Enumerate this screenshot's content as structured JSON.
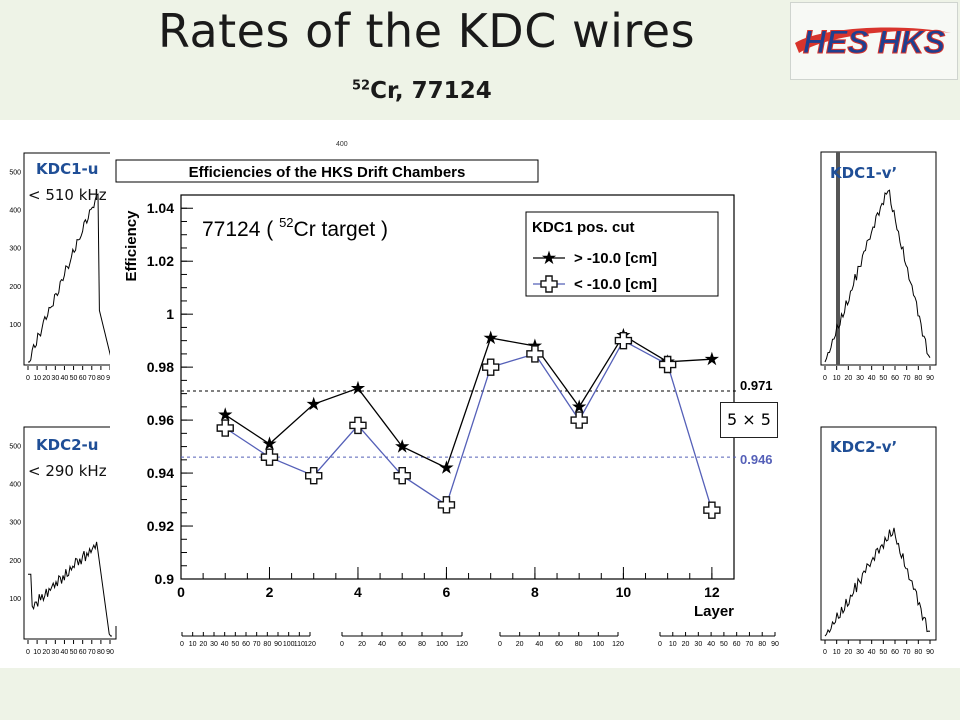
{
  "slide": {
    "title": "Rates of the KDC wires",
    "subtitle_sup": "52",
    "subtitle_main": "Cr, 77124",
    "logo": "HES HKS",
    "panel_labels": {
      "kdc1_u": "KDC1-u",
      "kdc1_u_note": "< 510 kHz",
      "kdc2_u": "KDC2-u",
      "kdc2_u_note": "< 290 kHz",
      "kdc1_v": "KDC1-v’",
      "kdc2_v": "KDC2-v’"
    },
    "box_label": "5 × 5",
    "top_ticks": {
      "t1": "400"
    },
    "colors": {
      "accent": "#1f4e96",
      "band": "#eef3e7",
      "series2": "#5560b8"
    }
  },
  "histograms": {
    "x_ticks_small": [
      "0",
      "10",
      "20",
      "30",
      "40",
      "50",
      "60",
      "70",
      "80",
      "90"
    ],
    "y_ticks_tl": [
      "100",
      "200",
      "300",
      "400",
      "500"
    ],
    "y_ticks_bl": [
      "100",
      "200",
      "300",
      "400",
      "500"
    ],
    "bottom_axes_ticks": [
      [
        "0",
        "10",
        "20",
        "30",
        "40",
        "50",
        "60",
        "70",
        "80",
        "90",
        "100",
        "110",
        "120"
      ],
      [
        "0",
        "20",
        "40",
        "60",
        "80",
        "100",
        "120"
      ],
      [
        "0",
        "20",
        "40",
        "60",
        "80",
        "100",
        "120"
      ],
      [
        "0",
        "10",
        "20",
        "30",
        "40",
        "50",
        "60",
        "70",
        "80",
        "90"
      ]
    ]
  },
  "chart_data": {
    "type": "line",
    "title": "Efficiencies of the HKS Drift Chambers",
    "annotation_pre": "77124 ( ",
    "annotation_sup": "52",
    "annotation_post": "Cr target )",
    "xlabel": "Layer",
    "ylabel": "Efficiency",
    "xlim": [
      0,
      12.5
    ],
    "ylim": [
      0.9,
      1.045
    ],
    "x_ticks": [
      0,
      2,
      4,
      6,
      8,
      10,
      12
    ],
    "y_ticks": [
      0.9,
      0.92,
      0.94,
      0.96,
      0.98,
      1,
      1.02,
      1.04
    ],
    "x_tick_labels": [
      "0",
      "2",
      "4",
      "6",
      "8",
      "10",
      "12"
    ],
    "y_tick_labels": [
      "0.9",
      "0.92",
      "0.94",
      "0.96",
      "0.98",
      "1",
      "1.02",
      "1.04"
    ],
    "legend": {
      "title": "KDC1 pos. cut",
      "position": "top-right"
    },
    "x": [
      1,
      2,
      3,
      4,
      5,
      6,
      7,
      8,
      9,
      10,
      11,
      12
    ],
    "series": [
      {
        "name": "> -10.0 [cm]",
        "color": "#000000",
        "marker": "star",
        "values": [
          0.962,
          0.951,
          0.966,
          0.972,
          0.95,
          0.942,
          0.991,
          0.988,
          0.965,
          0.992,
          0.982,
          0.983
        ]
      },
      {
        "name": "< -10.0 [cm]",
        "color": "#5560b8",
        "marker": "cross",
        "values": [
          0.957,
          0.946,
          0.939,
          0.958,
          0.939,
          0.928,
          0.98,
          0.985,
          0.96,
          0.99,
          0.981,
          0.926
        ]
      }
    ],
    "reference_lines": [
      {
        "value": 0.971,
        "label": "0.971",
        "color": "#000000"
      },
      {
        "value": 0.946,
        "label": "0.946",
        "color": "#5560b8"
      }
    ]
  }
}
